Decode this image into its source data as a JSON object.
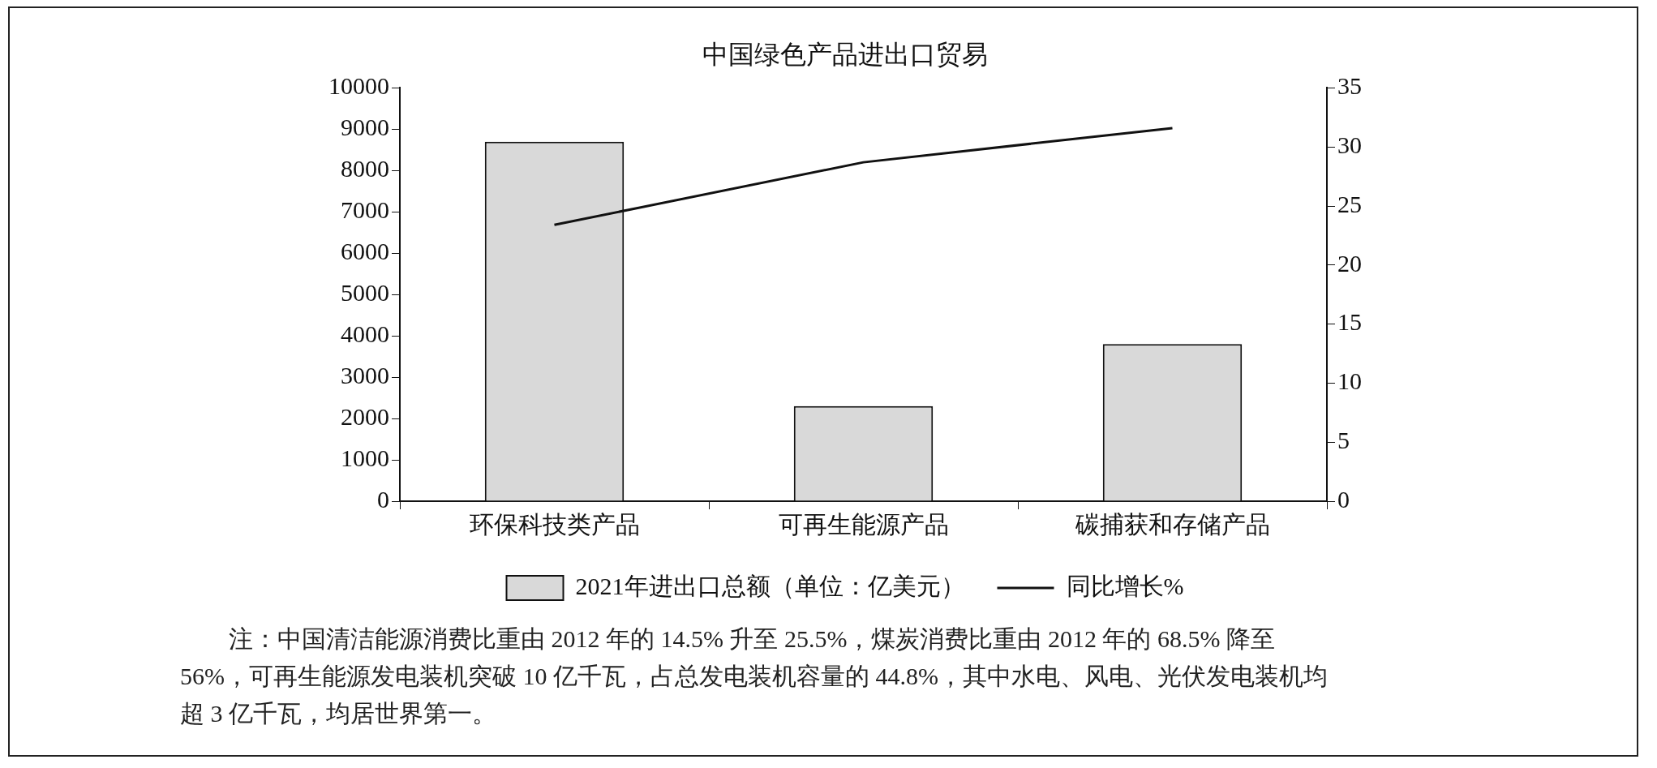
{
  "chart_data": {
    "type": "bar",
    "title": "中国绿色产品进出口贸易",
    "categories": [
      "环保科技类产品",
      "可再生能源产品",
      "碳捕获和存储产品"
    ],
    "series": [
      {
        "name": "2021年进出口总额（单位：亿美元）",
        "color": "#d9d9d9",
        "values": [
          8700,
          2300,
          3800
        ]
      },
      {
        "name": "同比增长%",
        "type": "line",
        "axis": "y2",
        "color": "#111111",
        "values": [
          23.4,
          28.7,
          31.6
        ]
      }
    ],
    "ylim": [
      0,
      10000
    ],
    "yticks": [
      0,
      1000,
      2000,
      3000,
      4000,
      5000,
      6000,
      7000,
      8000,
      9000,
      10000
    ],
    "y2lim": [
      0,
      35
    ],
    "y2ticks": [
      0,
      5,
      10,
      15,
      20,
      25,
      30,
      35
    ],
    "legend": "bottom",
    "marker": "none",
    "annotations": [
      "注：中国清洁能源消费比重由 2012 年的 14.5% 升至 25.5%，煤炭消费比重由 2012 年的 68.5% 降至 56%，可再生能源发电装机突破 10 亿千瓦，占总发电装机容量的 44.8%，其中水电、风电、光伏发电装机均超 3 亿千瓦，均居世界第一。"
    ]
  }
}
